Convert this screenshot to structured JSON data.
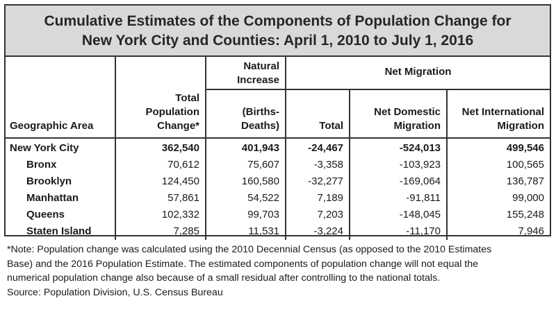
{
  "title": {
    "line1": "Cumulative Estimates of the Components of Population Change for",
    "line2": "New York City and Counties: April 1, 2010 to July 1, 2016"
  },
  "headers": {
    "geo": "Geographic Area",
    "total_change_line1": "Total",
    "total_change_line2": "Population",
    "total_change_line3": "Change*",
    "natural_line1": "Natural",
    "natural_line2": "Increase",
    "natural_line3": "(Births-",
    "natural_line4": "Deaths)",
    "net_migration": "Net Migration",
    "nm_total": "Total",
    "nm_domestic_line1": "Net Domestic",
    "nm_domestic_line2": "Migration",
    "nm_international_line1": "Net International",
    "nm_international_line2": "Migration"
  },
  "rows": [
    {
      "name": "New York City",
      "total_change": "362,540",
      "natural": "401,943",
      "nm_total": "-24,467",
      "nm_domestic": "-524,013",
      "nm_international": "499,546"
    },
    {
      "name": "Bronx",
      "total_change": "70,612",
      "natural": "75,607",
      "nm_total": "-3,358",
      "nm_domestic": "-103,923",
      "nm_international": "100,565"
    },
    {
      "name": "Brooklyn",
      "total_change": "124,450",
      "natural": "160,580",
      "nm_total": "-32,277",
      "nm_domestic": "-169,064",
      "nm_international": "136,787"
    },
    {
      "name": "Manhattan",
      "total_change": "57,861",
      "natural": "54,522",
      "nm_total": "7,189",
      "nm_domestic": "-91,811",
      "nm_international": "99,000"
    },
    {
      "name": "Queens",
      "total_change": "102,332",
      "natural": "99,703",
      "nm_total": "7,203",
      "nm_domestic": "-148,045",
      "nm_international": "155,248"
    },
    {
      "name": "Staten Island",
      "total_change": "7,285",
      "natural": "11,531",
      "nm_total": "-3,224",
      "nm_domestic": "-11,170",
      "nm_international": "7,946"
    }
  ],
  "notes": {
    "line1": "*Note: Population change was calculated using the 2010 Decennial Census (as opposed to the 2010 Estimates",
    "line2": "Base) and the 2016 Population Estimate. The estimated components of population change will not equal the",
    "line3": "numerical population change also because of a small residual after controlling to the national totals.",
    "source": "Source: Population Division, U.S. Census Bureau"
  }
}
